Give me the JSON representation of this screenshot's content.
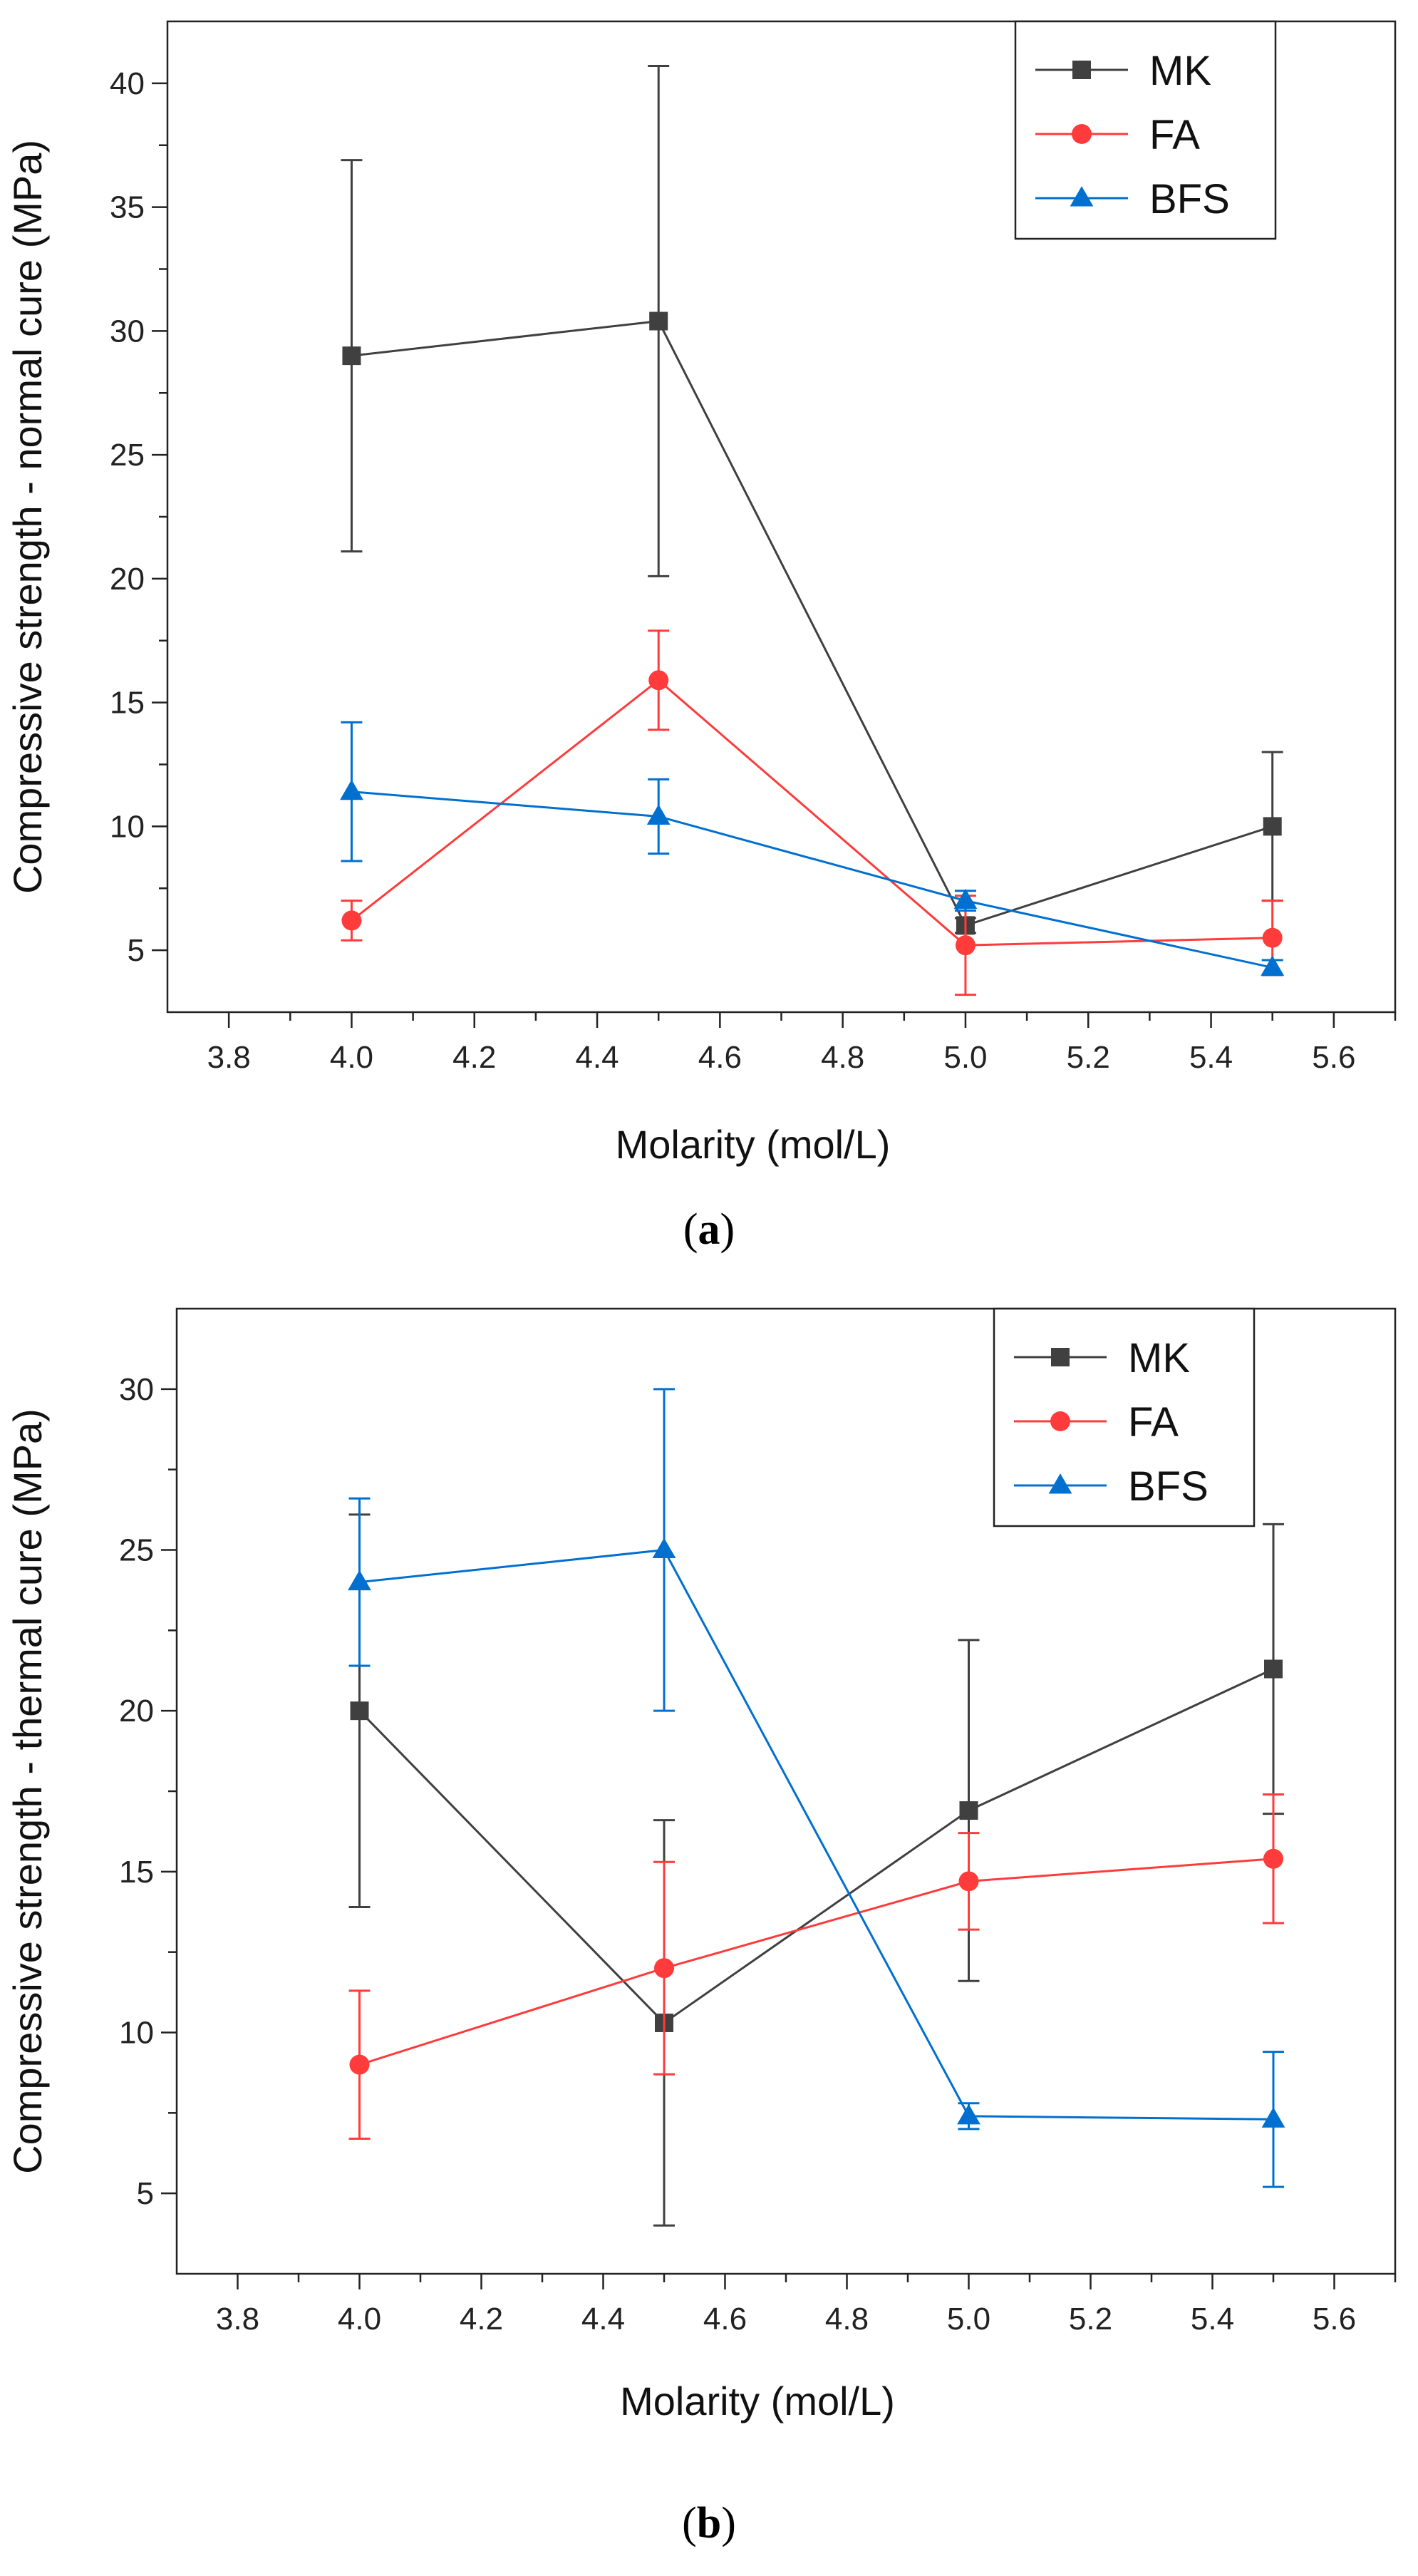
{
  "chart_data": [
    {
      "type": "line",
      "panel_label": "a",
      "xlabel": "Molarity (mol/L)",
      "ylabel": "Compressive strength - normal cure (MPa)",
      "xlim": [
        3.7,
        5.7
      ],
      "ylim": [
        2.5,
        42.5
      ],
      "xticks": [
        3.8,
        4.0,
        4.2,
        4.4,
        4.6,
        4.8,
        5.0,
        5.2,
        5.4,
        5.6
      ],
      "yticks": [
        5,
        10,
        15,
        20,
        25,
        30,
        35,
        40
      ],
      "x": [
        4.0,
        4.5,
        5.0,
        5.5
      ],
      "legend_position": "top-right",
      "series": [
        {
          "name": "MK",
          "color": "#404040",
          "marker": "square",
          "values": [
            29.0,
            30.4,
            6.0,
            10.0
          ],
          "errors": [
            7.9,
            10.3,
            0.3,
            3.0
          ]
        },
        {
          "name": "FA",
          "color": "#ff3b3b",
          "marker": "circle",
          "values": [
            6.2,
            15.9,
            5.2,
            5.5
          ],
          "errors": [
            0.8,
            2.0,
            2.0,
            1.5
          ]
        },
        {
          "name": "BFS",
          "color": "#0070d0",
          "marker": "triangle",
          "values": [
            11.4,
            10.4,
            7.0,
            4.3
          ],
          "errors": [
            2.8,
            1.5,
            0.4,
            0.3
          ]
        }
      ]
    },
    {
      "type": "line",
      "panel_label": "b",
      "xlabel": "Molarity (mol/L)",
      "ylabel": "Compressive strength - thermal cure (MPa)",
      "xlim": [
        3.7,
        5.7
      ],
      "ylim": [
        2.5,
        32.5
      ],
      "xticks": [
        3.8,
        4.0,
        4.2,
        4.4,
        4.6,
        4.8,
        5.0,
        5.2,
        5.4,
        5.6
      ],
      "yticks": [
        5,
        10,
        15,
        20,
        25,
        30
      ],
      "x": [
        4.0,
        4.5,
        5.0,
        5.5
      ],
      "legend_position": "top-right",
      "series": [
        {
          "name": "MK",
          "color": "#404040",
          "marker": "square",
          "values": [
            20.0,
            10.3,
            16.9,
            21.3
          ],
          "errors": [
            6.1,
            6.3,
            5.3,
            4.5
          ]
        },
        {
          "name": "FA",
          "color": "#ff3b3b",
          "marker": "circle",
          "values": [
            9.0,
            12.0,
            14.7,
            15.4
          ],
          "errors": [
            2.3,
            3.3,
            1.5,
            2.0
          ]
        },
        {
          "name": "BFS",
          "color": "#0070d0",
          "marker": "triangle",
          "values": [
            24.0,
            25.0,
            7.4,
            7.3
          ],
          "errors": [
            2.6,
            5.0,
            0.4,
            2.1
          ]
        }
      ]
    }
  ]
}
